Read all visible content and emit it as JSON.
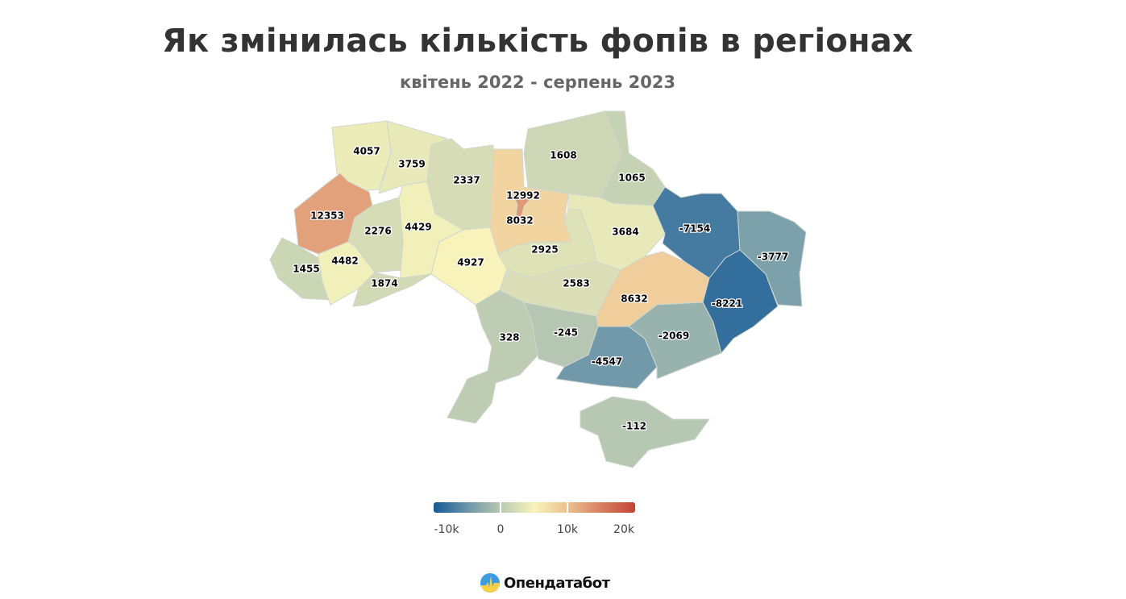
{
  "title": "Як змінилась кількість фопів в регіонах",
  "subtitle": "квітень 2022 - серпень 2023",
  "legend": {
    "ticks": [
      "-10k",
      "0",
      "10k",
      "20k"
    ],
    "min": -10000,
    "max": 20000,
    "stops": [
      {
        "value": -10000,
        "color": "#155996"
      },
      {
        "value": -5000,
        "color": "#6a94a8"
      },
      {
        "value": 0,
        "color": "#b9c9b2"
      },
      {
        "value": 5000,
        "color": "#f8f4bb"
      },
      {
        "value": 10000,
        "color": "#ecc08f"
      },
      {
        "value": 15000,
        "color": "#d77e62"
      },
      {
        "value": 20000,
        "color": "#c3443a"
      }
    ]
  },
  "regions": [
    {
      "id": "volyn",
      "value": 4057,
      "label": "4057"
    },
    {
      "id": "rivne",
      "value": 3759,
      "label": "3759"
    },
    {
      "id": "zhytomyr",
      "value": 2337,
      "label": "2337"
    },
    {
      "id": "kyiv-oblast",
      "value": 8032,
      "label": "8032"
    },
    {
      "id": "kyiv-city",
      "value": 12992,
      "label": "12992"
    },
    {
      "id": "chernihiv",
      "value": 1608,
      "label": "1608"
    },
    {
      "id": "sumy",
      "value": 1065,
      "label": "1065"
    },
    {
      "id": "lviv",
      "value": 12353,
      "label": "12353"
    },
    {
      "id": "ternopil",
      "value": 2276,
      "label": "2276"
    },
    {
      "id": "khmelnytskyi",
      "value": 4429,
      "label": "4429"
    },
    {
      "id": "vinnytsia",
      "value": 4927,
      "label": "4927"
    },
    {
      "id": "zakarpattia",
      "value": 1455,
      "label": "1455"
    },
    {
      "id": "ivano-frankivsk",
      "value": 4482,
      "label": "4482"
    },
    {
      "id": "chernivtsi",
      "value": 1874,
      "label": "1874"
    },
    {
      "id": "cherkasy",
      "value": 2925,
      "label": "2925"
    },
    {
      "id": "poltava",
      "value": 3684,
      "label": "3684"
    },
    {
      "id": "kirovohrad",
      "value": 2583,
      "label": "2583"
    },
    {
      "id": "kharkiv",
      "value": -7154,
      "label": "-7154"
    },
    {
      "id": "luhansk",
      "value": -3777,
      "label": "-3777"
    },
    {
      "id": "dnipropetrovsk",
      "value": 8632,
      "label": "8632"
    },
    {
      "id": "donetsk",
      "value": -8221,
      "label": "-8221"
    },
    {
      "id": "odesa",
      "value": 328,
      "label": "328"
    },
    {
      "id": "mykolaiv",
      "value": -245,
      "label": "-245"
    },
    {
      "id": "kherson",
      "value": -4547,
      "label": "-4547"
    },
    {
      "id": "zaporizhzhia",
      "value": -2069,
      "label": "-2069"
    },
    {
      "id": "crimea",
      "value": -112,
      "label": "-112"
    }
  ],
  "logo": {
    "text": "Опендатабот"
  }
}
